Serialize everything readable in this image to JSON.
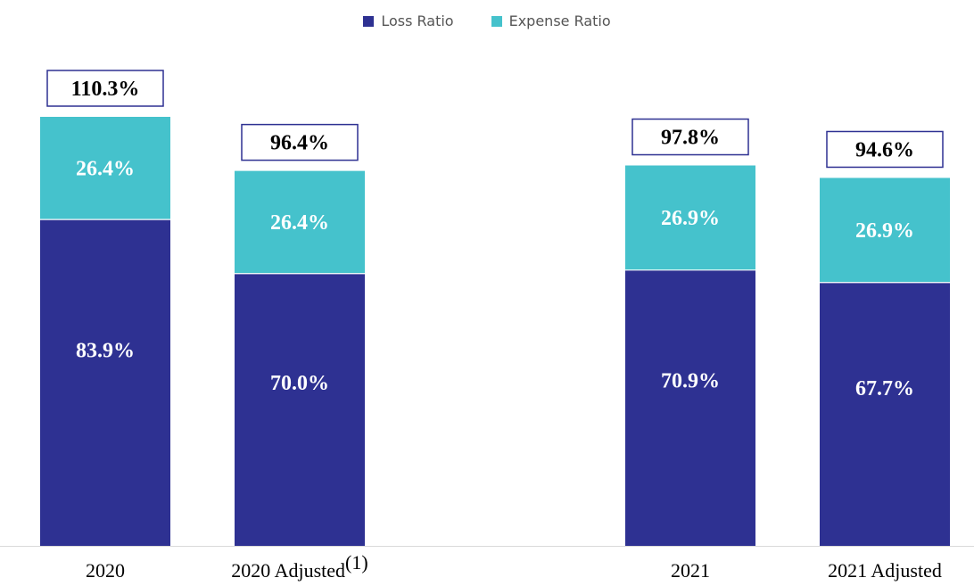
{
  "chart_data": {
    "type": "bar",
    "stacked": true,
    "categories": [
      "2020",
      "2020 Adjusted",
      "2021",
      "2021 Adjusted"
    ],
    "category_superscripts": [
      "",
      "(1)",
      "",
      ""
    ],
    "series": [
      {
        "name": "Loss Ratio",
        "color": "#2e3192",
        "values": [
          83.9,
          70.0,
          70.9,
          67.7
        ],
        "labels": [
          "83.9%",
          "70.0%",
          "70.9%",
          "67.7%"
        ]
      },
      {
        "name": "Expense Ratio",
        "color": "#45c2cc",
        "values": [
          26.4,
          26.4,
          26.9,
          26.9
        ],
        "labels": [
          "26.4%",
          "26.4%",
          "26.9%",
          "26.9%"
        ]
      }
    ],
    "totals": [
      "110.3%",
      "96.4%",
      "97.8%",
      "94.6%"
    ],
    "legend_position": "top-center",
    "grid": false,
    "ylim": [
      0,
      110.3
    ]
  }
}
